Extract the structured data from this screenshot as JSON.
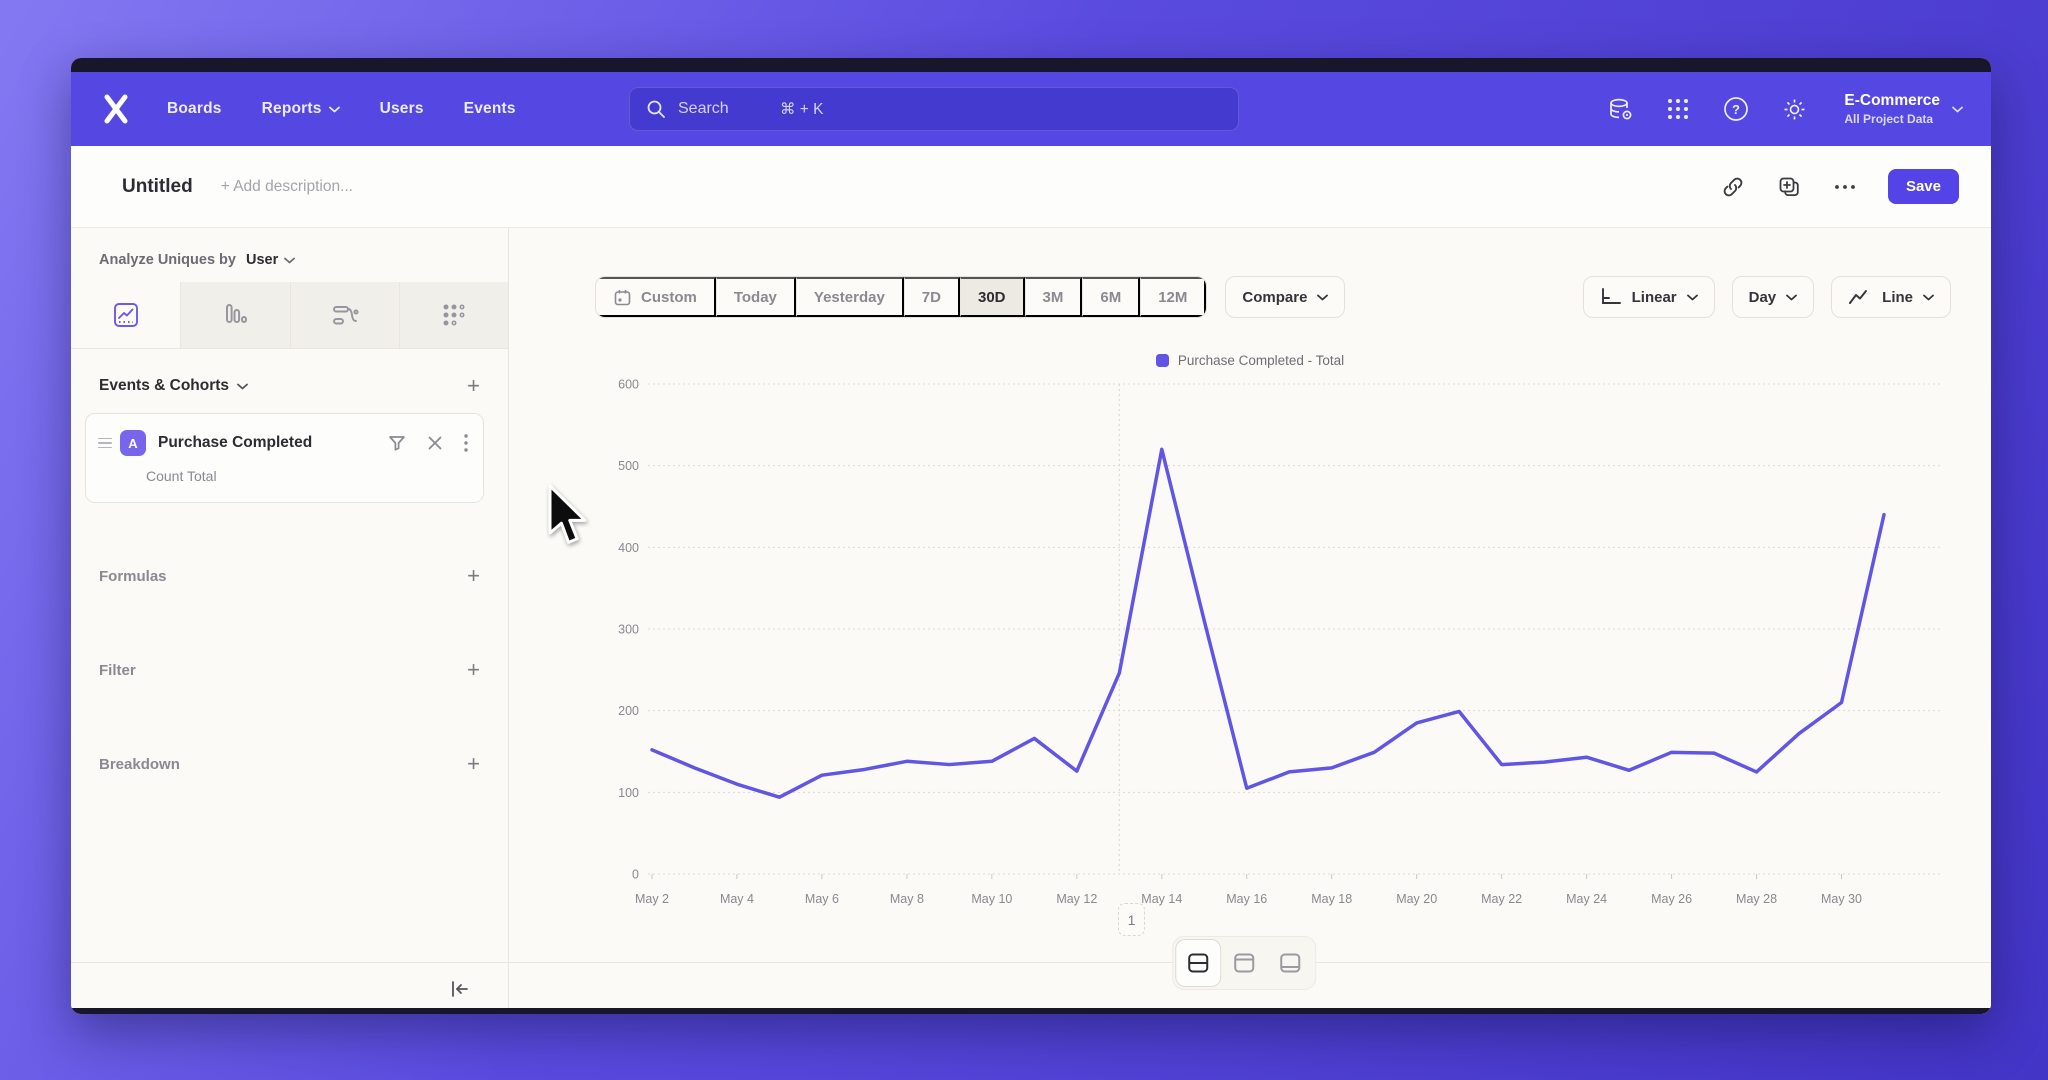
{
  "nav": {
    "links": [
      {
        "label": "Boards"
      },
      {
        "label": "Reports",
        "has_chevron": true
      },
      {
        "label": "Users"
      },
      {
        "label": "Events"
      }
    ],
    "search": {
      "placeholder": "Search",
      "shortcut": "⌘ + K"
    },
    "project": {
      "name": "E-Commerce",
      "subtitle": "All Project Data"
    }
  },
  "toolbar": {
    "title": "Untitled",
    "description_placeholder": "+ Add description...",
    "save_label": "Save"
  },
  "sidebar": {
    "analyze": {
      "prefix": "Analyze Uniques by",
      "value": "User"
    },
    "tabs": [
      {
        "icon": "insights-line-chart-icon",
        "active": true
      },
      {
        "icon": "bar-chart-icon",
        "active": false
      },
      {
        "icon": "flows-icon",
        "active": false
      },
      {
        "icon": "retention-grid-icon",
        "active": false
      }
    ],
    "events_section_title": "Events & Cohorts",
    "event_card": {
      "badge": "A",
      "title": "Purchase Completed",
      "subtitle": "Count Total"
    },
    "sections": [
      {
        "label": "Formulas"
      },
      {
        "label": "Filter"
      },
      {
        "label": "Breakdown"
      }
    ]
  },
  "controls": {
    "date_ranges": [
      {
        "label": "Custom",
        "icon": "calendar-icon",
        "active": false
      },
      {
        "label": "Today",
        "active": false
      },
      {
        "label": "Yesterday",
        "active": false
      },
      {
        "label": "7D",
        "active": false
      },
      {
        "label": "30D",
        "active": true
      },
      {
        "label": "3M",
        "active": false
      },
      {
        "label": "6M",
        "active": false
      },
      {
        "label": "12M",
        "active": false
      }
    ],
    "compare_label": "Compare",
    "scale_label": "Linear",
    "interval_label": "Day",
    "chart_type_label": "Line"
  },
  "chart_data": {
    "type": "line",
    "legend": "Purchase Completed - Total",
    "x": [
      "May 2",
      "May 3",
      "May 4",
      "May 5",
      "May 6",
      "May 7",
      "May 8",
      "May 9",
      "May 10",
      "May 11",
      "May 12",
      "May 13",
      "May 14",
      "May 15",
      "May 16",
      "May 17",
      "May 18",
      "May 19",
      "May 20",
      "May 21",
      "May 22",
      "May 23",
      "May 24",
      "May 25",
      "May 26",
      "May 27",
      "May 28",
      "May 29",
      "May 30",
      "May 31"
    ],
    "values": [
      152,
      130,
      110,
      94,
      121,
      128,
      138,
      134,
      138,
      166,
      126,
      246,
      520,
      310,
      105,
      125,
      130,
      149,
      185,
      199,
      134,
      137,
      143,
      127,
      149,
      148,
      125,
      172,
      210,
      440
    ],
    "x_label_every": 2,
    "ylim": [
      0,
      600
    ],
    "yticks": [
      0,
      100,
      200,
      300,
      400,
      500,
      600
    ],
    "grid": "dotted horizontal",
    "guide_index": 11,
    "line_color": "#6155e6",
    "legend_position": "top-center"
  },
  "footer": {
    "page": "1"
  },
  "colors": {
    "nav_purple": "#5447e2",
    "accent": "#5443e6",
    "line": "#6155e6",
    "canvas": "#fbfaf6"
  }
}
